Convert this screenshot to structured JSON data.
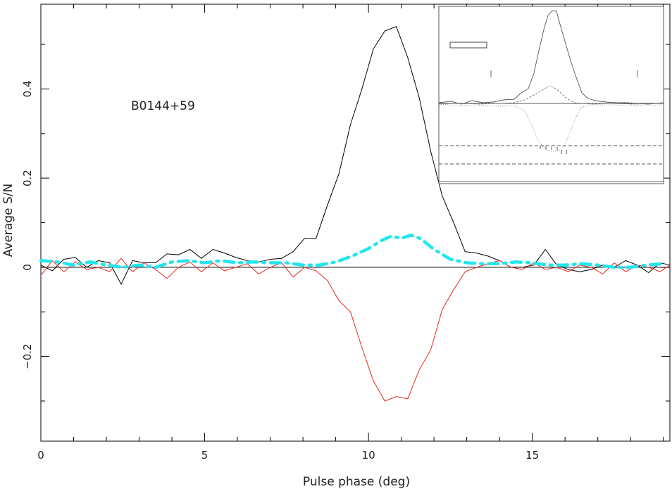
{
  "chart_data": {
    "type": "line",
    "annotation": "B0144+59",
    "xlabel": "Pulse phase (deg)",
    "ylabel": "Average S/N",
    "xlim": [
      0,
      19.2
    ],
    "ylim": [
      -0.39,
      0.59
    ],
    "xticks": [
      0,
      5,
      10,
      15
    ],
    "xtick_labels": [
      "0",
      "5",
      "10",
      "15"
    ],
    "yticks": [
      -0.2,
      0,
      0.2,
      0.4
    ],
    "ytick_labels": [
      "−0.2",
      "0",
      "0.2",
      "0.4"
    ],
    "series": [
      {
        "color": "#000000",
        "style": "solid",
        "x": [
          0.0,
          0.35,
          0.7,
          1.05,
          1.4,
          1.75,
          2.1,
          2.45,
          2.8,
          3.15,
          3.5,
          3.85,
          4.2,
          4.55,
          4.9,
          5.25,
          5.6,
          5.95,
          6.3,
          6.65,
          7.0,
          7.35,
          7.7,
          8.05,
          8.4,
          8.75,
          9.1,
          9.45,
          9.8,
          10.15,
          10.5,
          10.85,
          11.2,
          11.55,
          11.9,
          12.25,
          12.6,
          12.95,
          13.3,
          13.65,
          14.0,
          14.35,
          14.7,
          15.05,
          15.4,
          15.75,
          16.1,
          16.45,
          16.8,
          17.15,
          17.5,
          17.85,
          18.2,
          18.55,
          18.9,
          19.2
        ],
        "y": [
          0.005,
          -0.008,
          0.018,
          0.022,
          0.0,
          0.015,
          0.01,
          -0.038,
          0.015,
          0.01,
          0.01,
          0.03,
          0.028,
          0.04,
          0.02,
          0.04,
          0.032,
          0.022,
          0.015,
          0.012,
          0.018,
          0.02,
          0.035,
          0.065,
          0.065,
          0.14,
          0.21,
          0.32,
          0.4,
          0.49,
          0.53,
          0.54,
          0.47,
          0.38,
          0.26,
          0.16,
          0.1,
          0.035,
          0.032,
          0.025,
          0.015,
          0.0,
          0.0,
          0.005,
          0.04,
          0.005,
          -0.005,
          -0.01,
          -0.005,
          0.005,
          0.0,
          0.015,
          0.005,
          -0.012,
          0.01,
          0.005
        ]
      },
      {
        "color": "#e8281e",
        "style": "solid",
        "x": [
          0.0,
          0.35,
          0.7,
          1.05,
          1.4,
          1.75,
          2.1,
          2.45,
          2.8,
          3.15,
          3.5,
          3.85,
          4.2,
          4.55,
          4.9,
          5.25,
          5.6,
          5.95,
          6.3,
          6.65,
          7.0,
          7.35,
          7.7,
          8.05,
          8.4,
          8.75,
          9.1,
          9.45,
          9.8,
          10.15,
          10.5,
          10.85,
          11.2,
          11.55,
          11.9,
          12.25,
          12.6,
          12.95,
          13.3,
          13.65,
          14.0,
          14.35,
          14.7,
          15.05,
          15.4,
          15.75,
          16.1,
          16.45,
          16.8,
          17.15,
          17.5,
          17.85,
          18.2,
          18.55,
          18.9,
          19.2
        ],
        "y": [
          -0.018,
          0.015,
          -0.01,
          0.012,
          -0.005,
          0.0,
          -0.01,
          0.02,
          -0.01,
          0.01,
          -0.005,
          -0.025,
          0.0,
          0.012,
          -0.01,
          0.01,
          -0.008,
          0.0,
          0.008,
          -0.015,
          0.0,
          0.01,
          -0.022,
          0.0,
          -0.008,
          -0.03,
          -0.075,
          -0.1,
          -0.18,
          -0.255,
          -0.3,
          -0.29,
          -0.295,
          -0.23,
          -0.185,
          -0.095,
          -0.05,
          -0.01,
          0.0,
          0.008,
          0.015,
          0.0,
          -0.005,
          0.01,
          -0.005,
          0.0,
          -0.01,
          0.005,
          0.0,
          -0.015,
          0.01,
          -0.01,
          0.005,
          0.0,
          -0.01,
          0.005
        ]
      },
      {
        "color": "#22e6ee",
        "style": "dash-dot",
        "x": [
          0.0,
          0.5,
          1.0,
          1.5,
          2.0,
          2.5,
          3.0,
          3.5,
          4.0,
          4.5,
          5.0,
          5.5,
          6.0,
          6.5,
          7.0,
          7.5,
          8.0,
          8.5,
          9.0,
          9.5,
          10.0,
          10.4,
          10.7,
          11.0,
          11.3,
          11.6,
          12.0,
          12.5,
          13.0,
          13.5,
          14.0,
          14.5,
          15.0,
          15.5,
          16.0,
          16.5,
          17.0,
          17.5,
          18.0,
          18.5,
          19.0
        ],
        "y": [
          0.015,
          0.012,
          0.005,
          0.012,
          0.005,
          0.0,
          0.005,
          0.0,
          0.012,
          0.015,
          0.01,
          0.015,
          0.01,
          0.012,
          0.01,
          0.01,
          0.005,
          0.005,
          0.012,
          0.025,
          0.042,
          0.06,
          0.07,
          0.065,
          0.072,
          0.064,
          0.04,
          0.018,
          0.01,
          0.008,
          0.008,
          0.012,
          0.01,
          0.005,
          0.005,
          0.008,
          0.005,
          0.0,
          0.0,
          0.005,
          0.008
        ]
      }
    ],
    "zero_line": true
  }
}
